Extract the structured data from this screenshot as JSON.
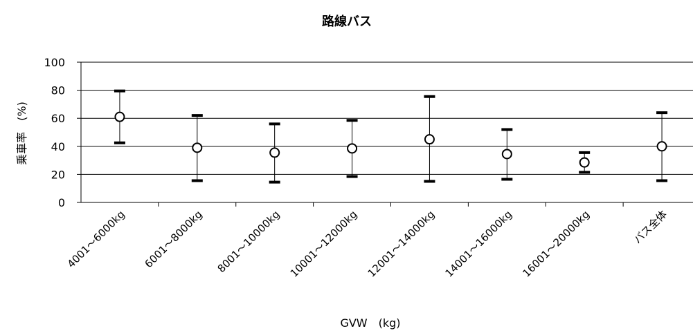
{
  "chart_data": {
    "type": "scatter",
    "title": "路線バス",
    "xlabel": "GVW　(kg)",
    "ylabel": "乗車率　(%)",
    "ylim": [
      0,
      100
    ],
    "yticks": [
      0,
      20,
      40,
      60,
      80,
      100
    ],
    "grid": true,
    "categories": [
      "4001～6000kg",
      "6001～8000kg",
      "8001～10000kg",
      "10001～12000kg",
      "12001～14000kg",
      "14001～16000kg",
      "16001～20000kg",
      "バス全体"
    ],
    "values": [
      61,
      39,
      35.5,
      38.5,
      45,
      34.5,
      28.5,
      40
    ],
    "error_high": [
      79.5,
      62,
      56,
      58.5,
      75.5,
      52,
      35.5,
      64
    ],
    "error_low": [
      42.5,
      15.5,
      14.5,
      18.5,
      15,
      16.5,
      21.5,
      15.5
    ]
  }
}
